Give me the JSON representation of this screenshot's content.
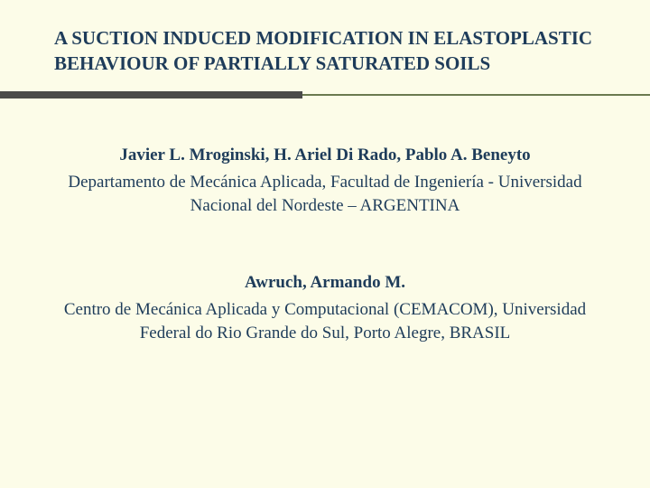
{
  "colors": {
    "background": "#fcfce8",
    "title": "#1e3c5a",
    "divider_thin": "#6b7a4f",
    "divider_thick": "#4a4a4a",
    "body_text": "#1e3c5a"
  },
  "layout": {
    "divider_thick_width": 335
  },
  "typography": {
    "title_size": 21,
    "body_size": 19
  },
  "title": "A SUCTION INDUCED MODIFICATION IN ELASTOPLASTIC BEHAVIOUR OF PARTIALLY SATURATED SOILS",
  "group1": {
    "authors": "Javier L. Mroginski, H. Ariel Di Rado, Pablo A. Beneyto",
    "affiliation": "Departamento de Mecánica Aplicada, Facultad de Ingeniería - Universidad Nacional del Nordeste – ARGENTINA"
  },
  "group2": {
    "authors": "Awruch, Armando M.",
    "affiliation": "Centro de Mecánica Aplicada y Computacional (CEMACOM), Universidad Federal do Rio Grande do Sul, Porto Alegre, BRASIL"
  }
}
